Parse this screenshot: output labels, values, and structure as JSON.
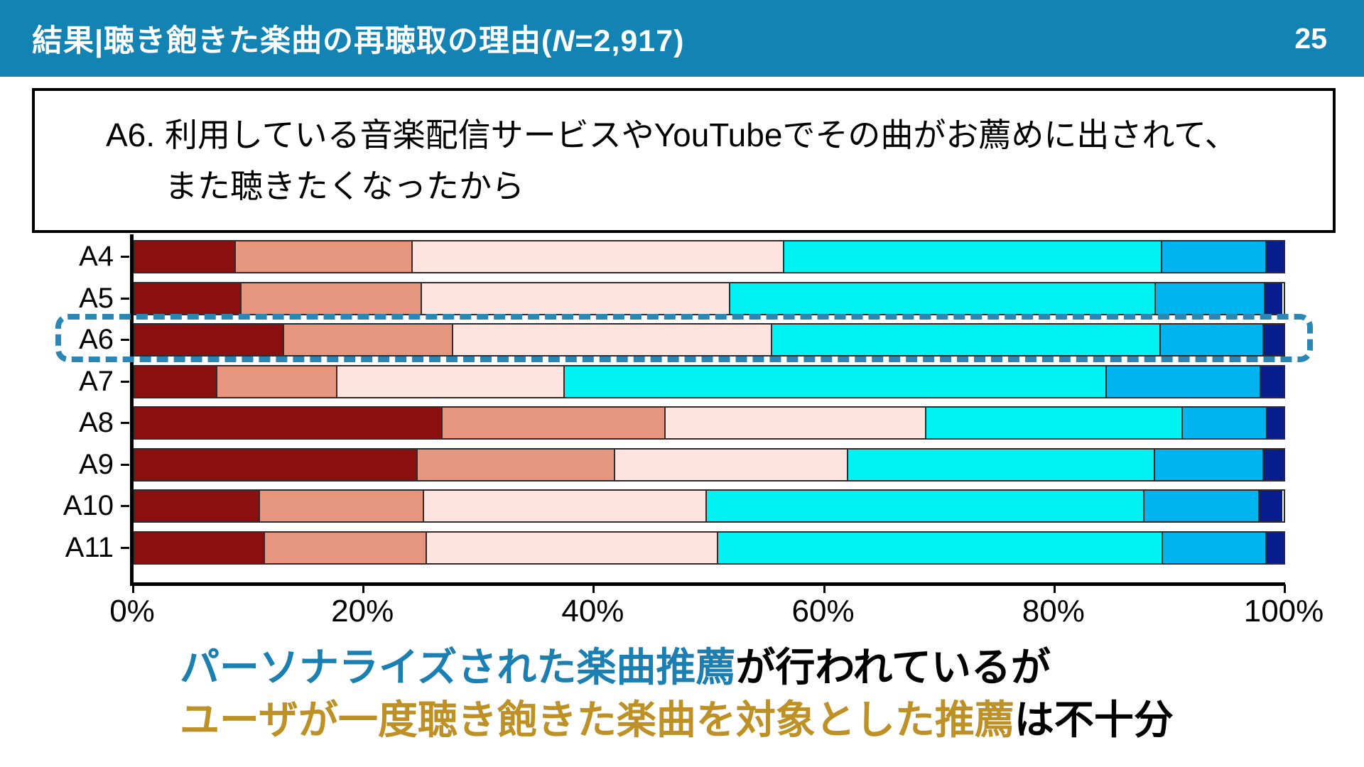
{
  "header": {
    "title_prefix": "結果|聴き飽きた楽曲の再聴取の理由(",
    "n_symbol": "N",
    "title_suffix": "=2,917)",
    "page_number": "25",
    "bg_color": "#1283B3"
  },
  "question_box": {
    "prefix": "A6.",
    "line1": "利用している音楽配信サービスやYouTubeでその曲がお薦めに出されて、",
    "line2": "また聴きたくなったから"
  },
  "chart_data": {
    "type": "bar",
    "stacked": true,
    "orientation": "horizontal",
    "categories": [
      "A4",
      "A5",
      "A6",
      "A7",
      "A8",
      "A9",
      "A10",
      "A11"
    ],
    "series": [
      {
        "name": "segment-1-dark-red",
        "color": "#8C0F10",
        "values": [
          8.8,
          9.3,
          13.0,
          7.2,
          26.8,
          24.6,
          10.9,
          11.3
        ]
      },
      {
        "name": "segment-2-salmon",
        "color": "#E6967E",
        "values": [
          15.4,
          15.7,
          14.7,
          10.4,
          19.4,
          17.2,
          14.3,
          14.1
        ]
      },
      {
        "name": "segment-3-light-pink",
        "color": "#FDE4DE",
        "values": [
          32.3,
          26.8,
          27.8,
          19.8,
          22.7,
          20.3,
          24.6,
          25.4
        ]
      },
      {
        "name": "segment-4-cyan",
        "color": "#00F2F2",
        "values": [
          32.9,
          37.1,
          33.8,
          47.2,
          22.3,
          26.7,
          38.1,
          38.7
        ]
      },
      {
        "name": "segment-5-sky-blue",
        "color": "#00B4EF",
        "values": [
          9.1,
          9.5,
          9.0,
          13.4,
          7.4,
          9.5,
          10.0,
          9.0
        ]
      },
      {
        "name": "segment-6-navy",
        "color": "#081D8D",
        "values": [
          1.5,
          1.5,
          1.7,
          2.0,
          1.4,
          1.7,
          2.0,
          1.5
        ]
      }
    ],
    "x_ticks": [
      "0%",
      "20%",
      "40%",
      "60%",
      "80%",
      "100%"
    ],
    "xlim": [
      0,
      100
    ],
    "grid": false,
    "legend": false,
    "highlighted_category": "A6",
    "highlight_color": "#2B86B3"
  },
  "conclusion": {
    "line1_highlight": "パーソナライズされた楽曲推薦",
    "line1_rest": "が行われているが",
    "line2_highlight": "ユーザが一度聴き飽きた楽曲を対象とした推薦",
    "line2_rest": "は不十分",
    "line1_color": "#1B7FB1",
    "line2_color": "#BD9125"
  }
}
